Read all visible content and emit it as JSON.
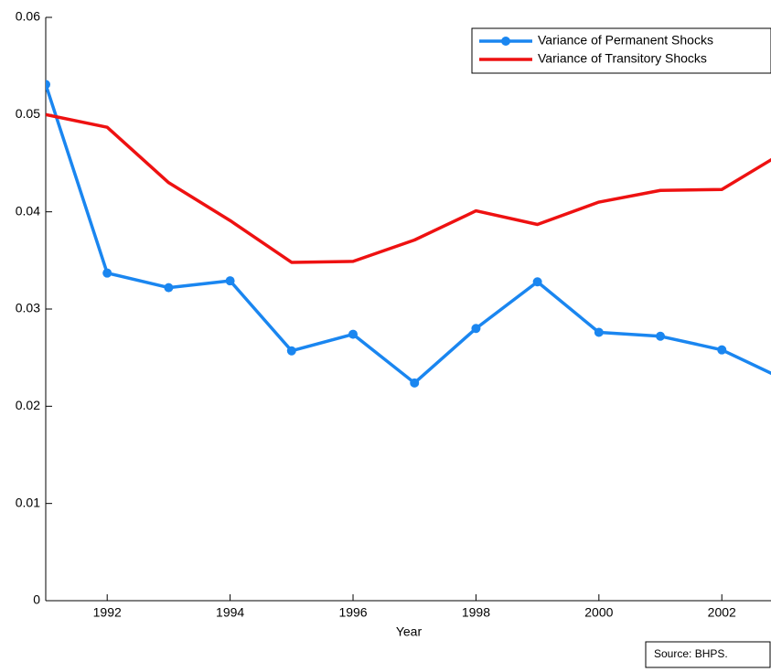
{
  "chart_data": {
    "type": "line",
    "x": [
      1991,
      1992,
      1993,
      1994,
      1995,
      1996,
      1997,
      1998,
      1999,
      2000,
      2001,
      2002,
      2003
    ],
    "series": [
      {
        "name": "Variance of Permanent Shocks",
        "color": "#1a86f0",
        "markers": true,
        "values": [
          0.0531,
          0.0337,
          0.0322,
          0.0329,
          0.0257,
          0.0274,
          0.0224,
          0.028,
          0.0328,
          0.0276,
          0.0272,
          0.0258,
          0.0228
        ]
      },
      {
        "name": "Variance of Transitory Shocks",
        "color": "#ee1111",
        "markers": false,
        "values": [
          0.05,
          0.0487,
          0.043,
          0.0391,
          0.0348,
          0.0349,
          0.0371,
          0.0401,
          0.0387,
          0.041,
          0.0422,
          0.0423,
          0.0461
        ]
      }
    ],
    "xlabel": "Year",
    "xlim": [
      1991,
      2002.8
    ],
    "xticks": [
      1992,
      1994,
      1996,
      1998,
      2000,
      2002
    ],
    "ylim": [
      0,
      0.06
    ],
    "yticks": [
      0,
      0.01,
      0.02,
      0.03,
      0.04,
      0.05,
      0.06
    ],
    "legend": "upper right",
    "note": "Source: BHPS."
  }
}
